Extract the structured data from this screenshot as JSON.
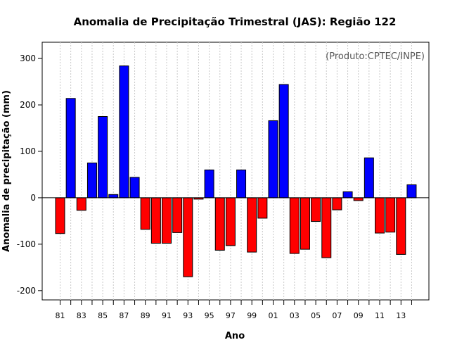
{
  "chart_data": {
    "type": "bar",
    "title": "Anomalia de Precipitação Trimestral (JAS): Região 122",
    "xlabel": "Ano",
    "ylabel": "Anomalia de precipitação (mm)",
    "credit": "(Produto:CPTEC/INPE)",
    "ylim": [
      -220,
      335
    ],
    "yticks": [
      -200,
      -100,
      0,
      100,
      200,
      300
    ],
    "x_tick_labels": [
      "81",
      "83",
      "85",
      "87",
      "89",
      "91",
      "93",
      "95",
      "97",
      "99",
      "01",
      "03",
      "05",
      "07",
      "09",
      "11",
      "13"
    ],
    "positive_color": "#0000ff",
    "negative_color": "#ff0000",
    "categories": [
      "1981",
      "1982",
      "1983",
      "1984",
      "1985",
      "1986",
      "1987",
      "1988",
      "1989",
      "1990",
      "1991",
      "1992",
      "1993",
      "1994",
      "1995",
      "1996",
      "1997",
      "1998",
      "1999",
      "2000",
      "2001",
      "2002",
      "2003",
      "2004",
      "2005",
      "2006",
      "2007",
      "2008",
      "2009",
      "2010",
      "2011",
      "2012",
      "2013",
      "2014"
    ],
    "values": [
      -77,
      214,
      -27,
      75,
      175,
      7,
      284,
      44,
      -68,
      -98,
      -98,
      -75,
      -170,
      -3,
      60,
      -113,
      -103,
      60,
      -117,
      -44,
      166,
      244,
      -120,
      -111,
      -51,
      -129,
      -26,
      13,
      -6,
      86,
      -76,
      -74,
      -122,
      28
    ]
  }
}
